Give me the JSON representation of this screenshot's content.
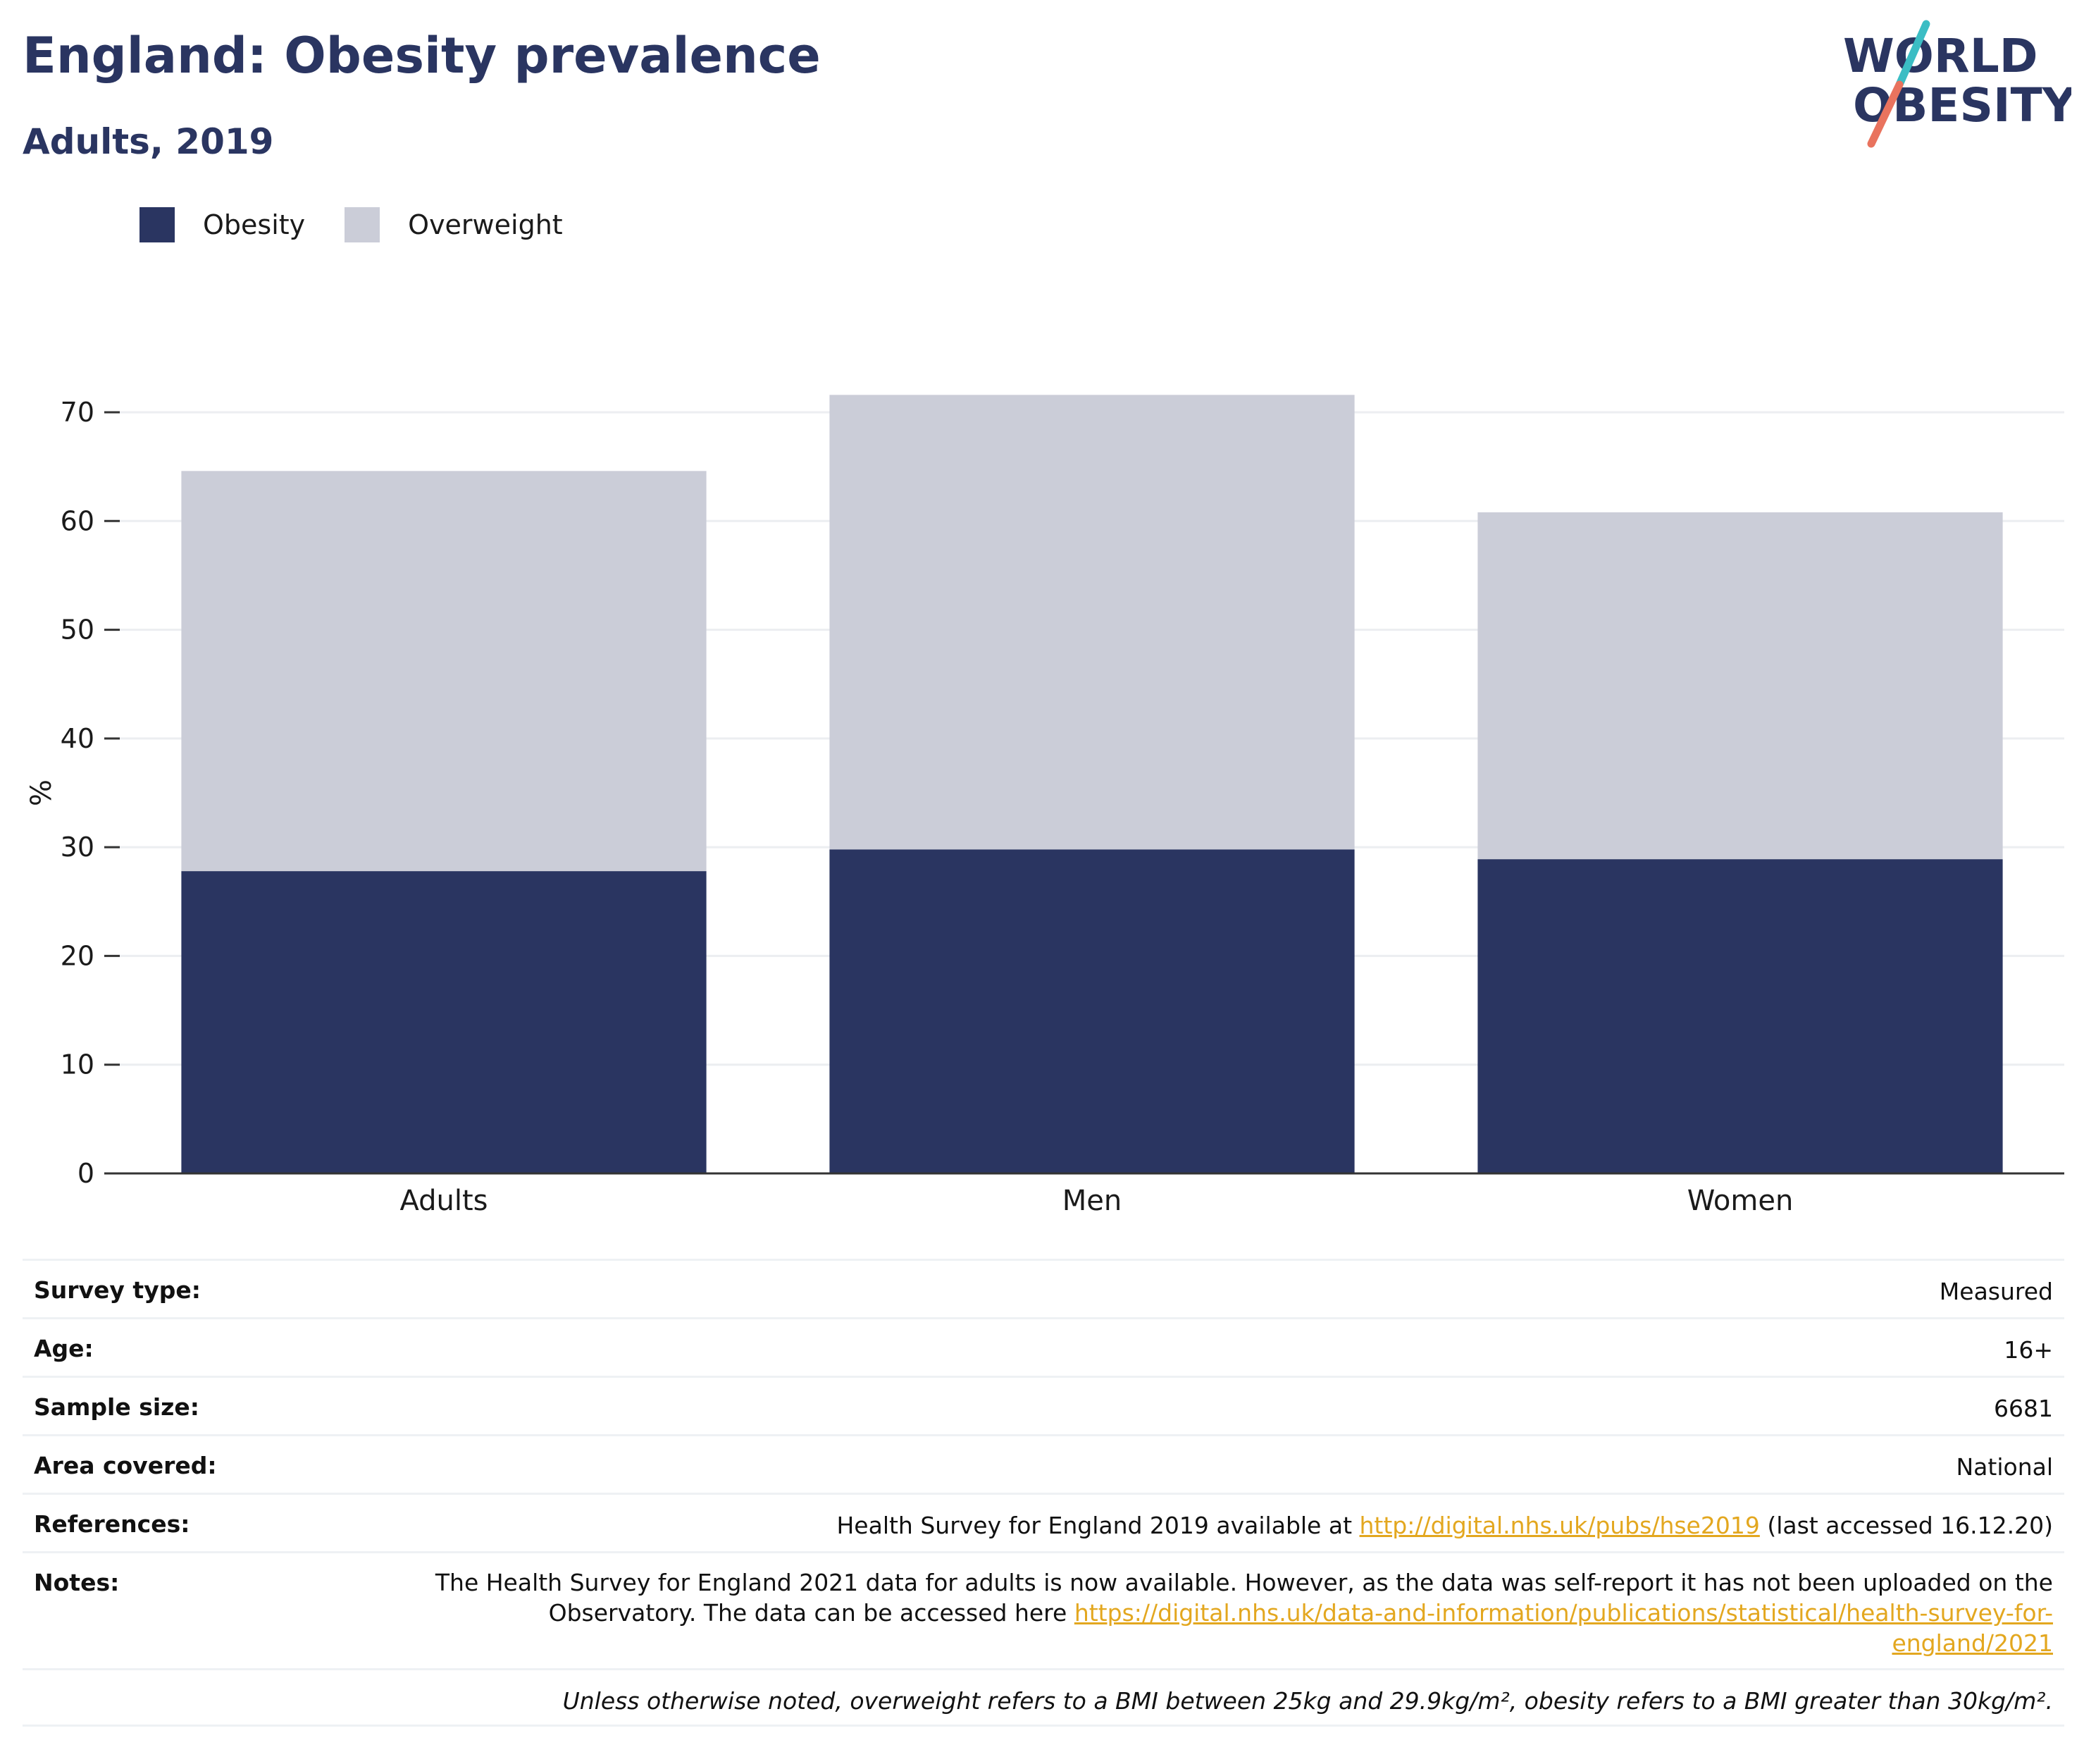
{
  "header": {
    "title": "England: Obesity prevalence",
    "subtitle": "Adults, 2019"
  },
  "logo": {
    "line1": "WORLD",
    "line2": "OBESITY",
    "colors": {
      "text": "#2a3561",
      "slash_top": "#3bbdc4",
      "slash_bottom": "#e9735e"
    }
  },
  "legend": [
    {
      "label": "Obesity",
      "color": "#2a3561"
    },
    {
      "label": "Overweight",
      "color": "#cbcdd8"
    }
  ],
  "chart_data": {
    "type": "bar",
    "stacked": true,
    "categories": [
      "Adults",
      "Men",
      "Women"
    ],
    "series": [
      {
        "name": "Obesity",
        "values": [
          27.8,
          29.8,
          28.9
        ],
        "color": "#2a3561"
      },
      {
        "name": "Overweight",
        "values": [
          36.8,
          41.8,
          31.9
        ],
        "color": "#cbcdd8"
      }
    ],
    "ylabel": "%",
    "ylim": [
      0,
      70
    ],
    "yticks": [
      0,
      10,
      20,
      30,
      40,
      50,
      60,
      70
    ],
    "grid": true,
    "legend_position": "top-left"
  },
  "info": {
    "survey_type": {
      "label": "Survey type:",
      "value": "Measured"
    },
    "age": {
      "label": "Age:",
      "value": "16+"
    },
    "sample_size": {
      "label": "Sample size:",
      "value": "6681"
    },
    "area_covered": {
      "label": "Area covered:",
      "value": "National"
    },
    "references": {
      "label": "References:",
      "prefix": "Health Survey for England 2019 available at ",
      "link": "http://digital.nhs.uk/pubs/hse2019",
      "suffix": " (last accessed 16.12.20)"
    },
    "notes": {
      "label": "Notes:",
      "text": "The Health Survey for England 2021 data for adults is now available. However, as the data was self-report it has not been uploaded on the Observatory. The data can be accessed here ",
      "link": "https://digital.nhs.uk/data-and-information/publications/statistical/health-survey-for-england/2021"
    },
    "footnote": "Unless otherwise noted, overweight refers to a BMI between 25kg and 29.9kg/m², obesity refers to a BMI greater than 30kg/m²."
  }
}
